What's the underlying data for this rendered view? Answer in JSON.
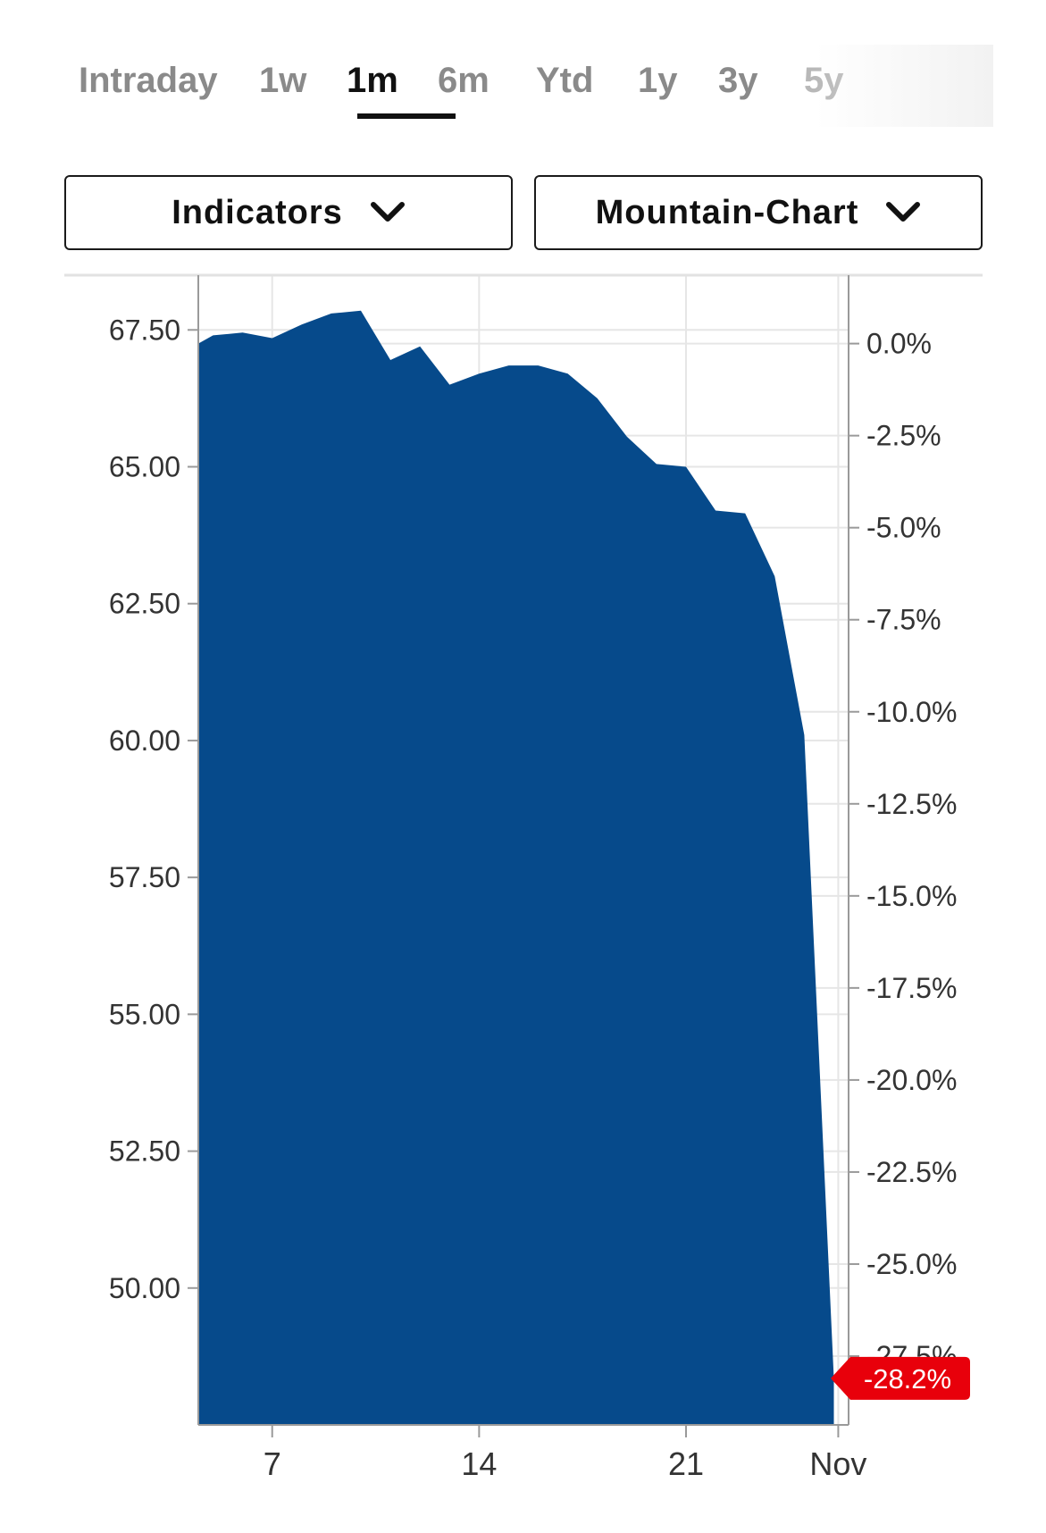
{
  "tabs": [
    {
      "label": "Intraday",
      "active": false
    },
    {
      "label": "1w",
      "active": false
    },
    {
      "label": "1m",
      "active": true
    },
    {
      "label": "6m",
      "active": false
    },
    {
      "label": "Ytd",
      "active": false
    },
    {
      "label": "1y",
      "active": false
    },
    {
      "label": "3y",
      "active": false
    },
    {
      "label": "5y",
      "active": false
    }
  ],
  "controls": {
    "indicators_label": "Indicators",
    "chart_type_label": "Mountain-Chart"
  },
  "colors": {
    "area": "#064a8b",
    "badge": "#e8000b",
    "grid": "#e6e6e6",
    "axis": "#9a9a9a"
  },
  "chart_data": {
    "type": "area",
    "title": "",
    "xlabel": "",
    "ylabel": "",
    "x_ticks": [
      "7",
      "14",
      "21",
      "Nov"
    ],
    "y_left_ticks": [
      "67.50",
      "65.00",
      "62.50",
      "60.00",
      "57.50",
      "55.00",
      "52.50",
      "50.00"
    ],
    "y_left_range": [
      47.5,
      68.5
    ],
    "y_right_ticks": [
      "0.0%",
      "-2.5%",
      "-5.0%",
      "-7.5%",
      "-10.0%",
      "-12.5%",
      "-15.0%",
      "-17.5%",
      "-20.0%",
      "-22.5%",
      "-25.0%",
      "-27.5%"
    ],
    "last_change_label": "-28.2%",
    "series": [
      {
        "values": [
          {
            "day": 4.5,
            "price": 67.25
          },
          {
            "day": 5,
            "price": 67.4
          },
          {
            "day": 6,
            "price": 67.45
          },
          {
            "day": 7,
            "price": 67.35
          },
          {
            "day": 8,
            "price": 67.6
          },
          {
            "day": 9,
            "price": 67.8
          },
          {
            "day": 10,
            "price": 67.85
          },
          {
            "day": 11,
            "price": 66.95
          },
          {
            "day": 12,
            "price": 67.2
          },
          {
            "day": 13,
            "price": 66.5
          },
          {
            "day": 14,
            "price": 66.7
          },
          {
            "day": 15,
            "price": 66.85
          },
          {
            "day": 16,
            "price": 66.85
          },
          {
            "day": 17,
            "price": 66.7
          },
          {
            "day": 18,
            "price": 66.25
          },
          {
            "day": 19,
            "price": 65.55
          },
          {
            "day": 20,
            "price": 65.05
          },
          {
            "day": 21,
            "price": 65.0
          },
          {
            "day": 22,
            "price": 64.2
          },
          {
            "day": 23,
            "price": 64.15
          },
          {
            "day": 24,
            "price": 63.0
          },
          {
            "day": 25,
            "price": 60.1
          },
          {
            "day": 26,
            "price": 48.35
          }
        ]
      }
    ],
    "grid": true,
    "legend": "none"
  }
}
